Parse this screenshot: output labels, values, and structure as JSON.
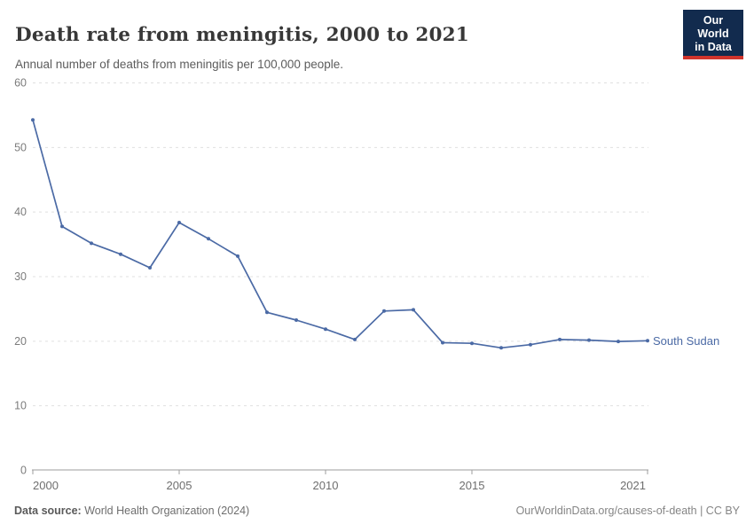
{
  "header": {
    "title": "Death rate from meningitis, 2000 to 2021",
    "subtitle": "Annual number of deaths from meningitis per 100,000 people.",
    "logo": {
      "line1": "Our World",
      "line2": "in Data"
    }
  },
  "colors": {
    "brand_navy": "#122b4e",
    "brand_red": "#d1342c",
    "series_blue": "#4b6aa5",
    "gridline": "#e0e0e0",
    "axis": "#9e9e9e"
  },
  "chart_data": {
    "type": "line",
    "title": "Death rate from meningitis, 2000 to 2021",
    "xlabel": "",
    "ylabel": "",
    "x": [
      2000,
      2001,
      2002,
      2003,
      2004,
      2005,
      2006,
      2007,
      2008,
      2009,
      2010,
      2011,
      2012,
      2013,
      2014,
      2015,
      2016,
      2017,
      2018,
      2019,
      2020,
      2021
    ],
    "series": [
      {
        "name": "South Sudan",
        "color": "#4b6aa5",
        "values": [
          54.2,
          37.7,
          35.1,
          33.4,
          31.3,
          38.3,
          35.8,
          33.1,
          24.4,
          23.2,
          21.8,
          20.2,
          24.6,
          24.8,
          19.7,
          19.6,
          18.9,
          19.4,
          20.2,
          20.1,
          19.9,
          20.0
        ]
      }
    ],
    "xlim": [
      2000,
      2021
    ],
    "ylim": [
      0,
      60
    ],
    "xticks": [
      2000,
      2005,
      2010,
      2015,
      2021
    ],
    "yticks": [
      0,
      10,
      20,
      30,
      40,
      50,
      60
    ],
    "grid": "horizontal-dashed",
    "legend_position": "entity-label-right-of-line-end"
  },
  "footer": {
    "datasource_label": "Data source:",
    "datasource_value": " World Health Organization (2024)",
    "credit": "OurWorldinData.org/causes-of-death | CC BY"
  }
}
